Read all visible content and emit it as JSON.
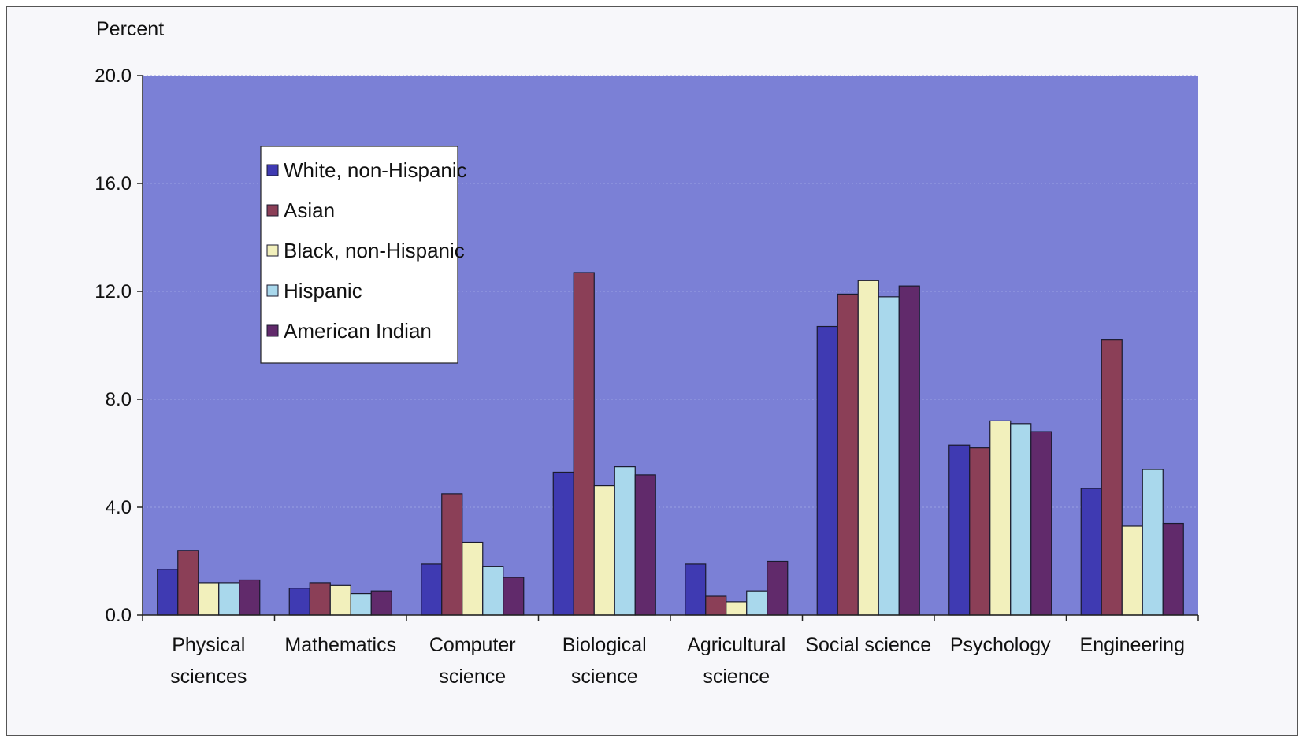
{
  "chart_data": {
    "type": "bar",
    "title": "",
    "ylabel": "Percent",
    "xlabel": "",
    "ylim": [
      0,
      20
    ],
    "yticks": [
      "0.0",
      "4.0",
      "8.0",
      "12.0",
      "16.0",
      "20.0"
    ],
    "grid": false,
    "legend_position": "top-left",
    "categories": [
      [
        "Physical",
        "sciences"
      ],
      [
        "Mathematics"
      ],
      [
        "Computer",
        "science"
      ],
      [
        "Biological",
        "science"
      ],
      [
        "Agricultural",
        "science"
      ],
      [
        "Social science"
      ],
      [
        "Psychology"
      ],
      [
        "Engineering"
      ]
    ],
    "series": [
      {
        "name": "White, non-Hispanic",
        "color": "#3f3ab2",
        "values": [
          1.7,
          1.0,
          1.9,
          5.3,
          1.9,
          10.7,
          6.3,
          4.7
        ]
      },
      {
        "name": "Asian",
        "color": "#8b3f57",
        "values": [
          2.4,
          1.2,
          4.5,
          12.7,
          0.7,
          11.9,
          6.2,
          10.2
        ]
      },
      {
        "name": "Black, non-Hispanic",
        "color": "#f2f0bc",
        "values": [
          1.2,
          1.1,
          2.7,
          4.8,
          0.5,
          12.4,
          7.2,
          3.3
        ]
      },
      {
        "name": "Hispanic",
        "color": "#a9d8ec",
        "values": [
          1.2,
          0.8,
          1.8,
          5.5,
          0.9,
          11.8,
          7.1,
          5.4
        ]
      },
      {
        "name": "American Indian",
        "color": "#612a6b",
        "values": [
          1.3,
          0.9,
          1.4,
          5.2,
          2.0,
          12.2,
          6.8,
          3.4
        ]
      }
    ],
    "plot_background": "#7b80d6",
    "legend_background": "#ffffff"
  }
}
